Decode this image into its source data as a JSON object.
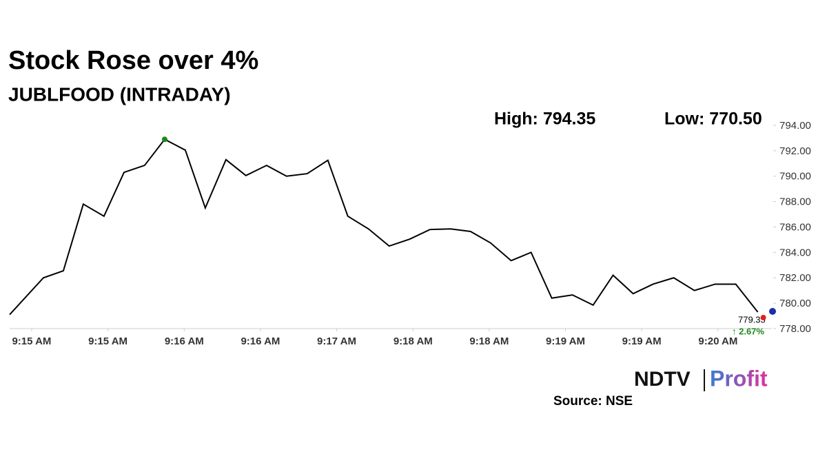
{
  "chart_data": {
    "type": "line",
    "title": "Stock Rose over 4%",
    "subtitle": "JUBLFOOD (INTRADAY)",
    "high_label": "High: 794.35",
    "low_label": "Low: 770.50",
    "last_label": "779.35",
    "change_label": "↑ 2.67%",
    "source": "Source: NSE",
    "logo_left": "NDTV",
    "logo_right": "Profit",
    "color": "#000000",
    "x": [
      14.82,
      15.096,
      15.259,
      15.422,
      15.591,
      15.755,
      15.923,
      16.087,
      16.256,
      16.419,
      16.588,
      16.751,
      16.92,
      17.083,
      17.252,
      17.421,
      17.584,
      17.753,
      17.922,
      18.091,
      18.255,
      18.423,
      18.587,
      18.75,
      18.919,
      19.082,
      19.251,
      19.42,
      19.589,
      19.752,
      19.916,
      20.079,
      20.248,
      20.417,
      20.586,
      20.755,
      20.935
    ],
    "values": [
      779.1,
      782.0,
      782.55,
      787.8,
      786.85,
      790.3,
      790.85,
      792.9,
      792.05,
      787.5,
      791.3,
      790.05,
      790.85,
      790.0,
      790.2,
      791.25,
      786.85,
      785.85,
      784.5,
      785.05,
      785.8,
      785.85,
      785.65,
      784.75,
      783.35,
      784.0,
      780.4,
      780.65,
      779.85,
      782.2,
      780.75,
      781.5,
      782.0,
      781.0,
      781.5,
      781.5,
      779.3
    ],
    "xlim": [
      14.82,
      21.05
    ],
    "xticks": [
      {
        "value": 15,
        "label": "9:15 AM"
      },
      {
        "value": 15.623,
        "label": "9:15 AM"
      },
      {
        "value": 16.247,
        "label": "9:16 AM"
      },
      {
        "value": 16.87,
        "label": "9:16 AM"
      },
      {
        "value": 17.493,
        "label": "9:17 AM"
      },
      {
        "value": 18.117,
        "label": "9:18 AM"
      },
      {
        "value": 18.74,
        "label": "9:18 AM"
      },
      {
        "value": 19.363,
        "label": "9:19 AM"
      },
      {
        "value": 19.986,
        "label": "9:19 AM"
      },
      {
        "value": 20.61,
        "label": "9:20 AM"
      }
    ],
    "ylim": [
      778,
      794
    ],
    "yticks": [
      {
        "value": 778,
        "label": "778.00"
      },
      {
        "value": 780,
        "label": "780.00"
      },
      {
        "value": 782,
        "label": "782.00"
      },
      {
        "value": 784,
        "label": "784.00"
      },
      {
        "value": 786,
        "label": "786.00"
      },
      {
        "value": 788,
        "label": "788.00"
      },
      {
        "value": 790,
        "label": "790.00"
      },
      {
        "value": 792,
        "label": "792.00"
      },
      {
        "value": 794,
        "label": "794.00"
      }
    ]
  }
}
